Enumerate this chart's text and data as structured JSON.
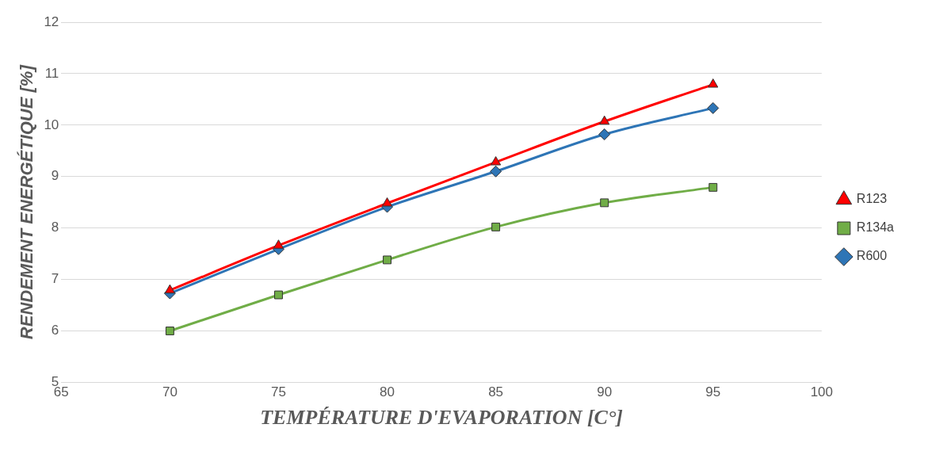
{
  "chart_data": {
    "type": "line",
    "xlabel": "TEMPÉRATURE D'EVAPORATION [C°]",
    "ylabel": "RENDEMENT ENERGÉTIQUE [%]",
    "x": [
      70,
      75,
      80,
      85,
      90,
      95
    ],
    "series": [
      {
        "name": "R600",
        "color": "#2e75b6",
        "marker": "diamond",
        "values": [
          6.73,
          7.59,
          8.41,
          9.1,
          9.82,
          10.33
        ]
      },
      {
        "name": "R134a",
        "color": "#70ad47",
        "marker": "square",
        "values": [
          6.0,
          6.7,
          7.38,
          8.02,
          8.49,
          8.79
        ]
      },
      {
        "name": "R123",
        "color": "#ff0000",
        "marker": "triangle",
        "values": [
          6.79,
          7.66,
          8.48,
          9.28,
          10.07,
          10.79
        ]
      }
    ],
    "xlim": [
      65,
      100
    ],
    "xticks": [
      65,
      70,
      75,
      80,
      85,
      90,
      95,
      100
    ],
    "ylim": [
      5,
      12
    ],
    "yticks": [
      5,
      6,
      7,
      8,
      9,
      10,
      11,
      12
    ],
    "grid": "y",
    "legend": "right"
  }
}
